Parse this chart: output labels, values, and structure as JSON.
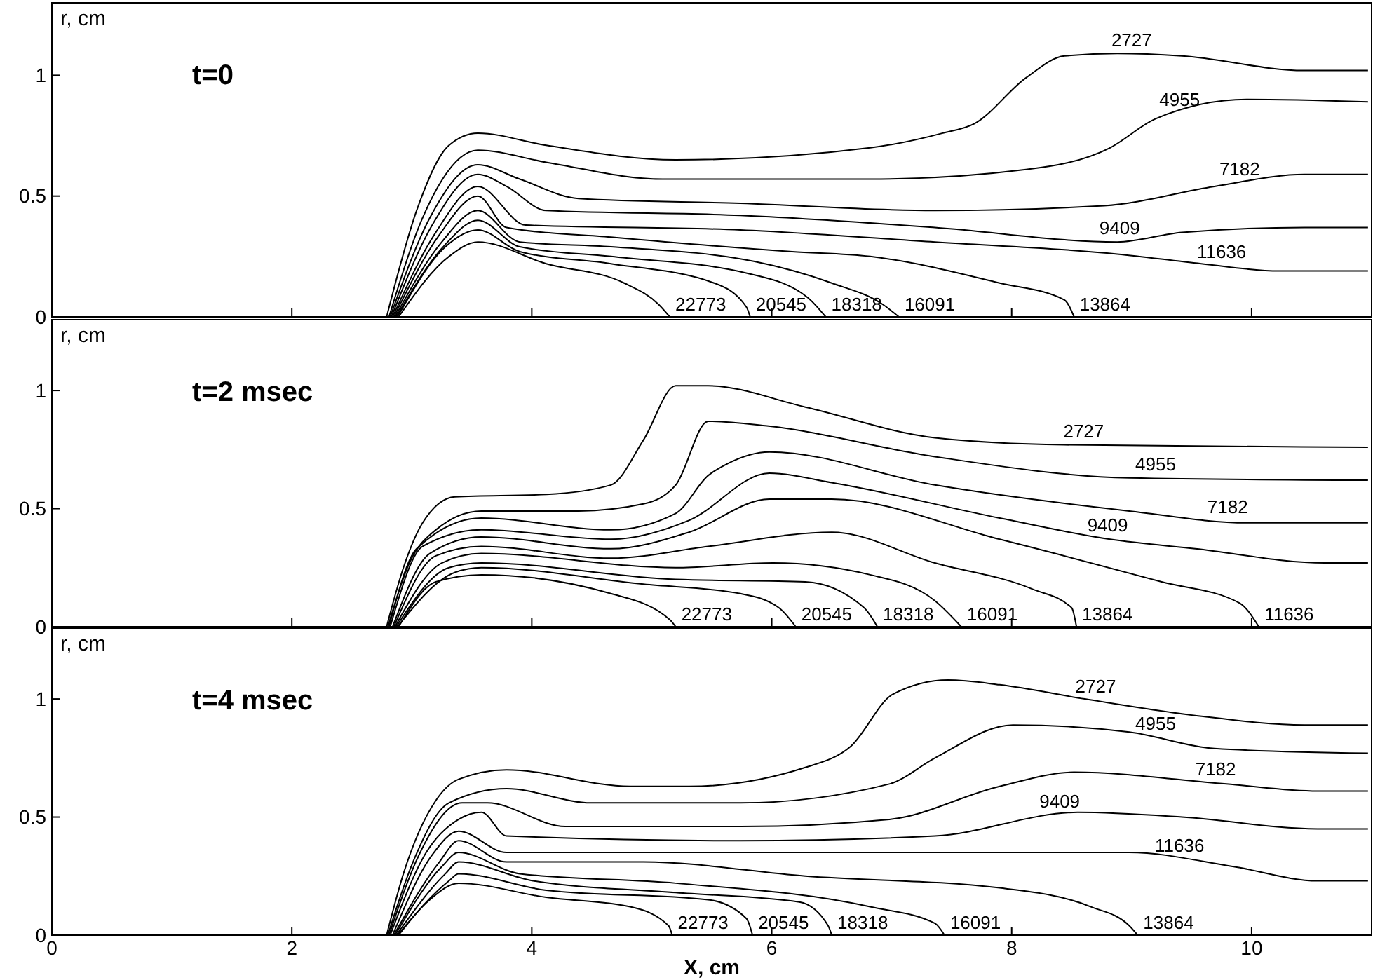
{
  "chart_data": [
    {
      "type": "line",
      "title": "t=0",
      "ylabel": "r, cm",
      "xlim": [
        0,
        11
      ],
      "ylim": [
        0,
        1.3
      ],
      "xticks": [
        0,
        2,
        4,
        6,
        8,
        10
      ],
      "yticks": [
        0,
        0.5,
        1
      ],
      "tick_labels": "y",
      "grid": false,
      "legend": false,
      "marker": "none",
      "line_style": "solid",
      "series": [
        {
          "name": "2727",
          "color": "#000000",
          "x": [
            2.79,
            3.04,
            3.31,
            3.55,
            4.12,
            5.2,
            6.82,
            7.42,
            7.69,
            8.12,
            8.44,
            8.88,
            9.42,
            10.44,
            10.97
          ],
          "values": [
            0,
            0.44,
            0.71,
            0.76,
            0.71,
            0.65,
            0.7,
            0.76,
            0.8,
            0.99,
            1.08,
            1.09,
            1.08,
            1.02,
            1.02
          ]
        },
        {
          "name": "4955",
          "color": "#000000",
          "x": [
            2.81,
            3.09,
            3.55,
            4.12,
            5.09,
            6.82,
            8.12,
            8.82,
            9.2,
            9.96,
            10.97
          ],
          "values": [
            0,
            0.41,
            0.69,
            0.64,
            0.57,
            0.57,
            0.61,
            0.7,
            0.82,
            0.9,
            0.89
          ]
        },
        {
          "name": "7182",
          "color": "#000000",
          "x": [
            2.82,
            3.15,
            3.55,
            3.9,
            4.39,
            5.74,
            7.36,
            8.77,
            9.69,
            10.44,
            10.97
          ],
          "values": [
            0,
            0.41,
            0.63,
            0.57,
            0.49,
            0.47,
            0.44,
            0.46,
            0.54,
            0.59,
            0.59
          ]
        },
        {
          "name": "9409",
          "color": "#000000",
          "x": [
            2.83,
            3.17,
            3.55,
            3.79,
            4.12,
            5.74,
            7.36,
            8.88,
            9.42,
            10.44,
            10.97
          ],
          "values": [
            0,
            0.38,
            0.59,
            0.54,
            0.44,
            0.42,
            0.37,
            0.31,
            0.35,
            0.37,
            0.37
          ]
        },
        {
          "name": "11636",
          "color": "#000000",
          "x": [
            2.84,
            3.2,
            3.55,
            3.95,
            5.74,
            7.36,
            8.88,
            9.58,
            10.23,
            10.97
          ],
          "values": [
            0,
            0.35,
            0.54,
            0.38,
            0.36,
            0.31,
            0.26,
            0.22,
            0.19,
            0.19
          ]
        },
        {
          "name": "13864",
          "color": "#000000",
          "x": [
            2.85,
            3.23,
            3.55,
            3.79,
            4.66,
            6.17,
            6.82,
            7.9,
            8.44,
            8.52
          ],
          "values": [
            0,
            0.34,
            0.5,
            0.37,
            0.33,
            0.27,
            0.25,
            0.14,
            0.07,
            0
          ]
        },
        {
          "name": "16091",
          "color": "#000000",
          "x": [
            2.86,
            3.25,
            3.55,
            3.9,
            4.66,
            5.85,
            6.5,
            6.93,
            7.06
          ],
          "values": [
            0,
            0.31,
            0.44,
            0.31,
            0.29,
            0.23,
            0.14,
            0.05,
            0
          ]
        },
        {
          "name": "18318",
          "color": "#000000",
          "x": [
            2.87,
            3.28,
            3.55,
            3.9,
            4.66,
            5.8,
            6.3,
            6.45
          ],
          "values": [
            0,
            0.3,
            0.4,
            0.29,
            0.25,
            0.18,
            0.08,
            0
          ]
        },
        {
          "name": "20545",
          "color": "#000000",
          "x": [
            2.88,
            3.28,
            3.55,
            3.9,
            4.66,
            5.52,
            5.79,
            5.82
          ],
          "values": [
            0,
            0.29,
            0.36,
            0.27,
            0.22,
            0.14,
            0.04,
            0
          ]
        },
        {
          "name": "22773",
          "color": "#000000",
          "x": [
            2.89,
            3.31,
            3.55,
            4.12,
            4.77,
            5.06,
            5.15
          ],
          "values": [
            0,
            0.25,
            0.31,
            0.22,
            0.14,
            0.05,
            0
          ]
        }
      ]
    },
    {
      "type": "line",
      "title": "t=2 msec",
      "ylabel": "r, cm",
      "xlim": [
        0,
        11
      ],
      "ylim": [
        0,
        1.3
      ],
      "xticks": [
        0,
        2,
        4,
        6,
        8,
        10
      ],
      "yticks": [
        0,
        0.5,
        1
      ],
      "tick_labels": "y",
      "grid": false,
      "legend": false,
      "marker": "none",
      "line_style": "solid",
      "series": [
        {
          "name": "2727",
          "color": "#000000",
          "x": [
            2.79,
            2.93,
            3.09,
            3.36,
            4.12,
            4.66,
            4.93,
            5.2,
            5.47,
            6.28,
            7.36,
            8.44,
            10.97
          ],
          "values": [
            0,
            0.25,
            0.44,
            0.55,
            0.56,
            0.6,
            0.79,
            1.02,
            1.02,
            0.93,
            0.8,
            0.77,
            0.76
          ]
        },
        {
          "name": "4955",
          "color": "#000000",
          "x": [
            2.8,
            2.98,
            3.2,
            3.58,
            4.39,
            4.93,
            5.2,
            5.47,
            5.96,
            7.36,
            8.98,
            10.97
          ],
          "values": [
            0,
            0.27,
            0.41,
            0.49,
            0.49,
            0.52,
            0.6,
            0.87,
            0.85,
            0.72,
            0.63,
            0.62
          ]
        },
        {
          "name": "7182",
          "color": "#000000",
          "x": [
            2.81,
            3.04,
            3.58,
            4.66,
            5.2,
            5.47,
            5.63,
            5.98,
            7.36,
            8.98,
            9.96,
            10.97
          ],
          "values": [
            0,
            0.33,
            0.46,
            0.41,
            0.48,
            0.64,
            0.69,
            0.74,
            0.6,
            0.49,
            0.44,
            0.44
          ]
        },
        {
          "name": "9409",
          "color": "#000000",
          "x": [
            2.82,
            3.09,
            3.58,
            4.66,
            5.31,
            5.98,
            6.5,
            7.9,
            8.82,
            9.53,
            10.61,
            10.97
          ],
          "values": [
            0,
            0.34,
            0.41,
            0.37,
            0.45,
            0.65,
            0.61,
            0.46,
            0.37,
            0.33,
            0.27,
            0.27
          ]
        },
        {
          "name": "11636",
          "color": "#000000",
          "x": [
            2.84,
            3.15,
            3.58,
            4.66,
            5.31,
            5.98,
            6.5,
            7.9,
            9.25,
            9.9,
            10.06
          ],
          "values": [
            0,
            0.31,
            0.38,
            0.33,
            0.4,
            0.54,
            0.54,
            0.37,
            0.19,
            0.1,
            0
          ]
        },
        {
          "name": "13864",
          "color": "#000000",
          "x": [
            2.85,
            3.2,
            3.58,
            4.66,
            5.47,
            6.5,
            7.36,
            8.17,
            8.5,
            8.54
          ],
          "values": [
            0,
            0.3,
            0.34,
            0.29,
            0.34,
            0.4,
            0.27,
            0.16,
            0.08,
            0
          ]
        },
        {
          "name": "16091",
          "color": "#000000",
          "x": [
            2.86,
            3.25,
            3.58,
            5.2,
            6.01,
            6.82,
            7.36,
            7.58
          ],
          "values": [
            0,
            0.27,
            0.31,
            0.25,
            0.27,
            0.22,
            0.11,
            0
          ]
        },
        {
          "name": "18318",
          "color": "#000000",
          "x": [
            2.87,
            3.31,
            3.58,
            5.2,
            6.28,
            6.77,
            6.88
          ],
          "values": [
            0,
            0.25,
            0.27,
            0.2,
            0.19,
            0.08,
            0
          ]
        },
        {
          "name": "20545",
          "color": "#000000",
          "x": [
            2.88,
            3.36,
            3.58,
            4.93,
            5.74,
            6.06,
            6.2
          ],
          "values": [
            0,
            0.23,
            0.25,
            0.18,
            0.14,
            0.08,
            0
          ]
        },
        {
          "name": "22773",
          "color": "#000000",
          "x": [
            2.89,
            3.2,
            3.58,
            4.66,
            5.15,
            5.2
          ],
          "values": [
            0,
            0.19,
            0.22,
            0.14,
            0.03,
            0
          ]
        }
      ]
    },
    {
      "type": "line",
      "title": "t=4 msec",
      "ylabel": "r, cm",
      "xlabel": "X, cm",
      "xlim": [
        0,
        11
      ],
      "ylim": [
        0,
        1.3
      ],
      "xticks": [
        0,
        2,
        4,
        6,
        8,
        10
      ],
      "yticks": [
        0,
        0.5,
        1
      ],
      "grid": false,
      "legend": false,
      "marker": "none",
      "line_style": "solid",
      "series": [
        {
          "name": "2727",
          "color": "#000000",
          "x": [
            2.79,
            2.93,
            3.2,
            3.39,
            3.79,
            4.82,
            5.31,
            6.28,
            6.66,
            7.01,
            7.47,
            7.9,
            8.61,
            9.53,
            10.44,
            10.97
          ],
          "values": [
            0,
            0.26,
            0.57,
            0.66,
            0.7,
            0.63,
            0.63,
            0.71,
            0.8,
            1.02,
            1.08,
            1.06,
            1,
            0.93,
            0.89,
            0.89
          ]
        },
        {
          "name": "4955",
          "color": "#000000",
          "x": [
            2.8,
            3.01,
            3.31,
            3.79,
            4.5,
            5.74,
            6.98,
            7.36,
            8.01,
            8.98,
            9.69,
            10.97
          ],
          "values": [
            0,
            0.31,
            0.56,
            0.62,
            0.56,
            0.56,
            0.64,
            0.75,
            0.89,
            0.86,
            0.79,
            0.77
          ]
        },
        {
          "name": "7182",
          "color": "#000000",
          "x": [
            2.81,
            3.06,
            3.42,
            3.63,
            4.28,
            5.74,
            6.98,
            7.9,
            8.52,
            9.79,
            10.55,
            10.97
          ],
          "values": [
            0,
            0.34,
            0.56,
            0.56,
            0.46,
            0.46,
            0.49,
            0.63,
            0.69,
            0.64,
            0.61,
            0.61
          ]
        },
        {
          "name": "9409",
          "color": "#000000",
          "x": [
            2.82,
            3.12,
            3.39,
            3.58,
            3.79,
            5.74,
            7.36,
            8.55,
            9.42,
            10.55,
            10.97
          ],
          "values": [
            0,
            0.35,
            0.49,
            0.52,
            0.42,
            0.4,
            0.42,
            0.52,
            0.5,
            0.45,
            0.45
          ]
        },
        {
          "name": "11636",
          "color": "#000000",
          "x": [
            2.84,
            3.17,
            3.39,
            3.79,
            5.2,
            6.82,
            8.98,
            9.85,
            10.55,
            10.97
          ],
          "values": [
            0,
            0.34,
            0.44,
            0.35,
            0.35,
            0.35,
            0.35,
            0.29,
            0.23,
            0.23
          ]
        },
        {
          "name": "13864",
          "color": "#000000",
          "x": [
            2.85,
            3.23,
            3.39,
            3.79,
            4.93,
            6.28,
            7.9,
            8.66,
            8.98,
            9.05
          ],
          "values": [
            0,
            0.31,
            0.4,
            0.31,
            0.31,
            0.25,
            0.2,
            0.12,
            0.04,
            0
          ]
        },
        {
          "name": "16091",
          "color": "#000000",
          "x": [
            2.86,
            3.25,
            3.39,
            3.9,
            5.2,
            6.82,
            7.36,
            7.44
          ],
          "values": [
            0,
            0.29,
            0.35,
            0.26,
            0.22,
            0.12,
            0.05,
            0
          ]
        },
        {
          "name": "18318",
          "color": "#000000",
          "x": [
            2.87,
            3.28,
            3.39,
            4.01,
            5.2,
            6.23,
            6.47,
            6.5
          ],
          "values": [
            0,
            0.26,
            0.31,
            0.23,
            0.18,
            0.14,
            0.04,
            0
          ]
        },
        {
          "name": "20545",
          "color": "#000000",
          "x": [
            2.88,
            3.31,
            3.39,
            4.12,
            5.47,
            5.79,
            5.84
          ],
          "values": [
            0,
            0.23,
            0.26,
            0.19,
            0.15,
            0.07,
            0
          ]
        },
        {
          "name": "22773",
          "color": "#000000",
          "x": [
            2.89,
            3.15,
            3.39,
            4.12,
            4.82,
            5.14,
            5.17
          ],
          "values": [
            0,
            0.15,
            0.22,
            0.16,
            0.12,
            0.04,
            0
          ]
        }
      ]
    }
  ]
}
